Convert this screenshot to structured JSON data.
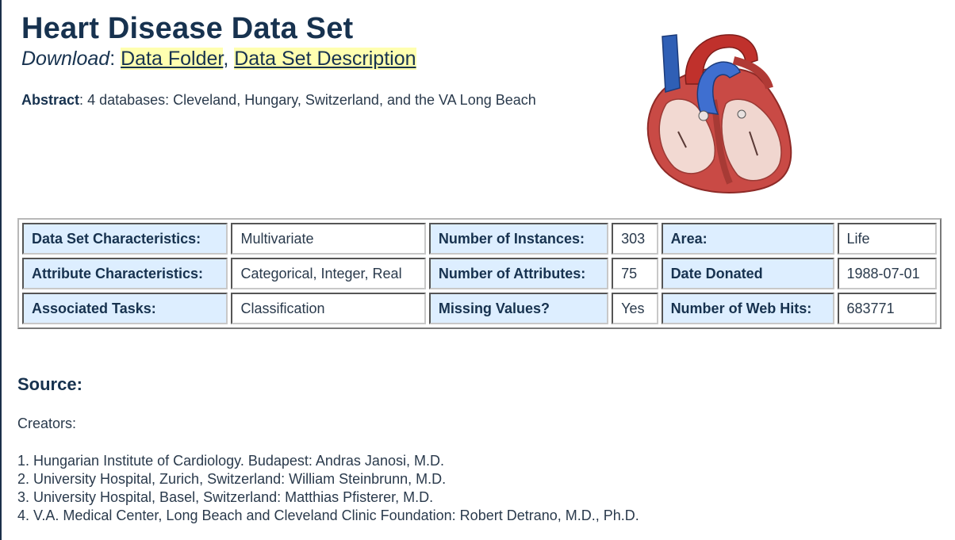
{
  "title": "Heart Disease Data Set",
  "download": {
    "label": "Download",
    "colon": ":",
    "sep": ",",
    "links": [
      "Data Folder",
      "Data Set Description"
    ]
  },
  "abstract": {
    "label": "Abstract",
    "colon": ":",
    "text": "4 databases: Cleveland, Hungary, Switzerland, and the VA Long Beach"
  },
  "image": {
    "icon": "heart-anatomy-illustration"
  },
  "table": {
    "rows": [
      {
        "k1": "Data Set Characteristics:",
        "v1": "Multivariate",
        "k2": "Number of Instances:",
        "v2": "303",
        "k3": "Area:",
        "v3": "Life"
      },
      {
        "k1": "Attribute Characteristics:",
        "v1": "Categorical, Integer, Real",
        "k2": "Number of Attributes:",
        "v2": "75",
        "k3": "Date Donated",
        "v3": "1988-07-01"
      },
      {
        "k1": "Associated Tasks:",
        "v1": "Classification",
        "k2": "Missing Values?",
        "v2": "Yes",
        "k3": "Number of Web Hits:",
        "v3": "683771"
      }
    ]
  },
  "source": {
    "heading": "Source:",
    "creators_label": "Creators:",
    "creators": [
      "1. Hungarian Institute of Cardiology. Budapest: Andras Janosi, M.D.",
      "2. University Hospital, Zurich, Switzerland: William Steinbrunn, M.D.",
      "3. University Hospital, Basel, Switzerland: Matthias Pfisterer, M.D.",
      "4. V.A. Medical Center, Long Beach and Cleveland Clinic Foundation: Robert Detrano, M.D., Ph.D."
    ]
  },
  "colors": {
    "heading": "#17324f",
    "link_highlight": "#ffffb0",
    "key_cell_bg": "#ddeeff"
  }
}
